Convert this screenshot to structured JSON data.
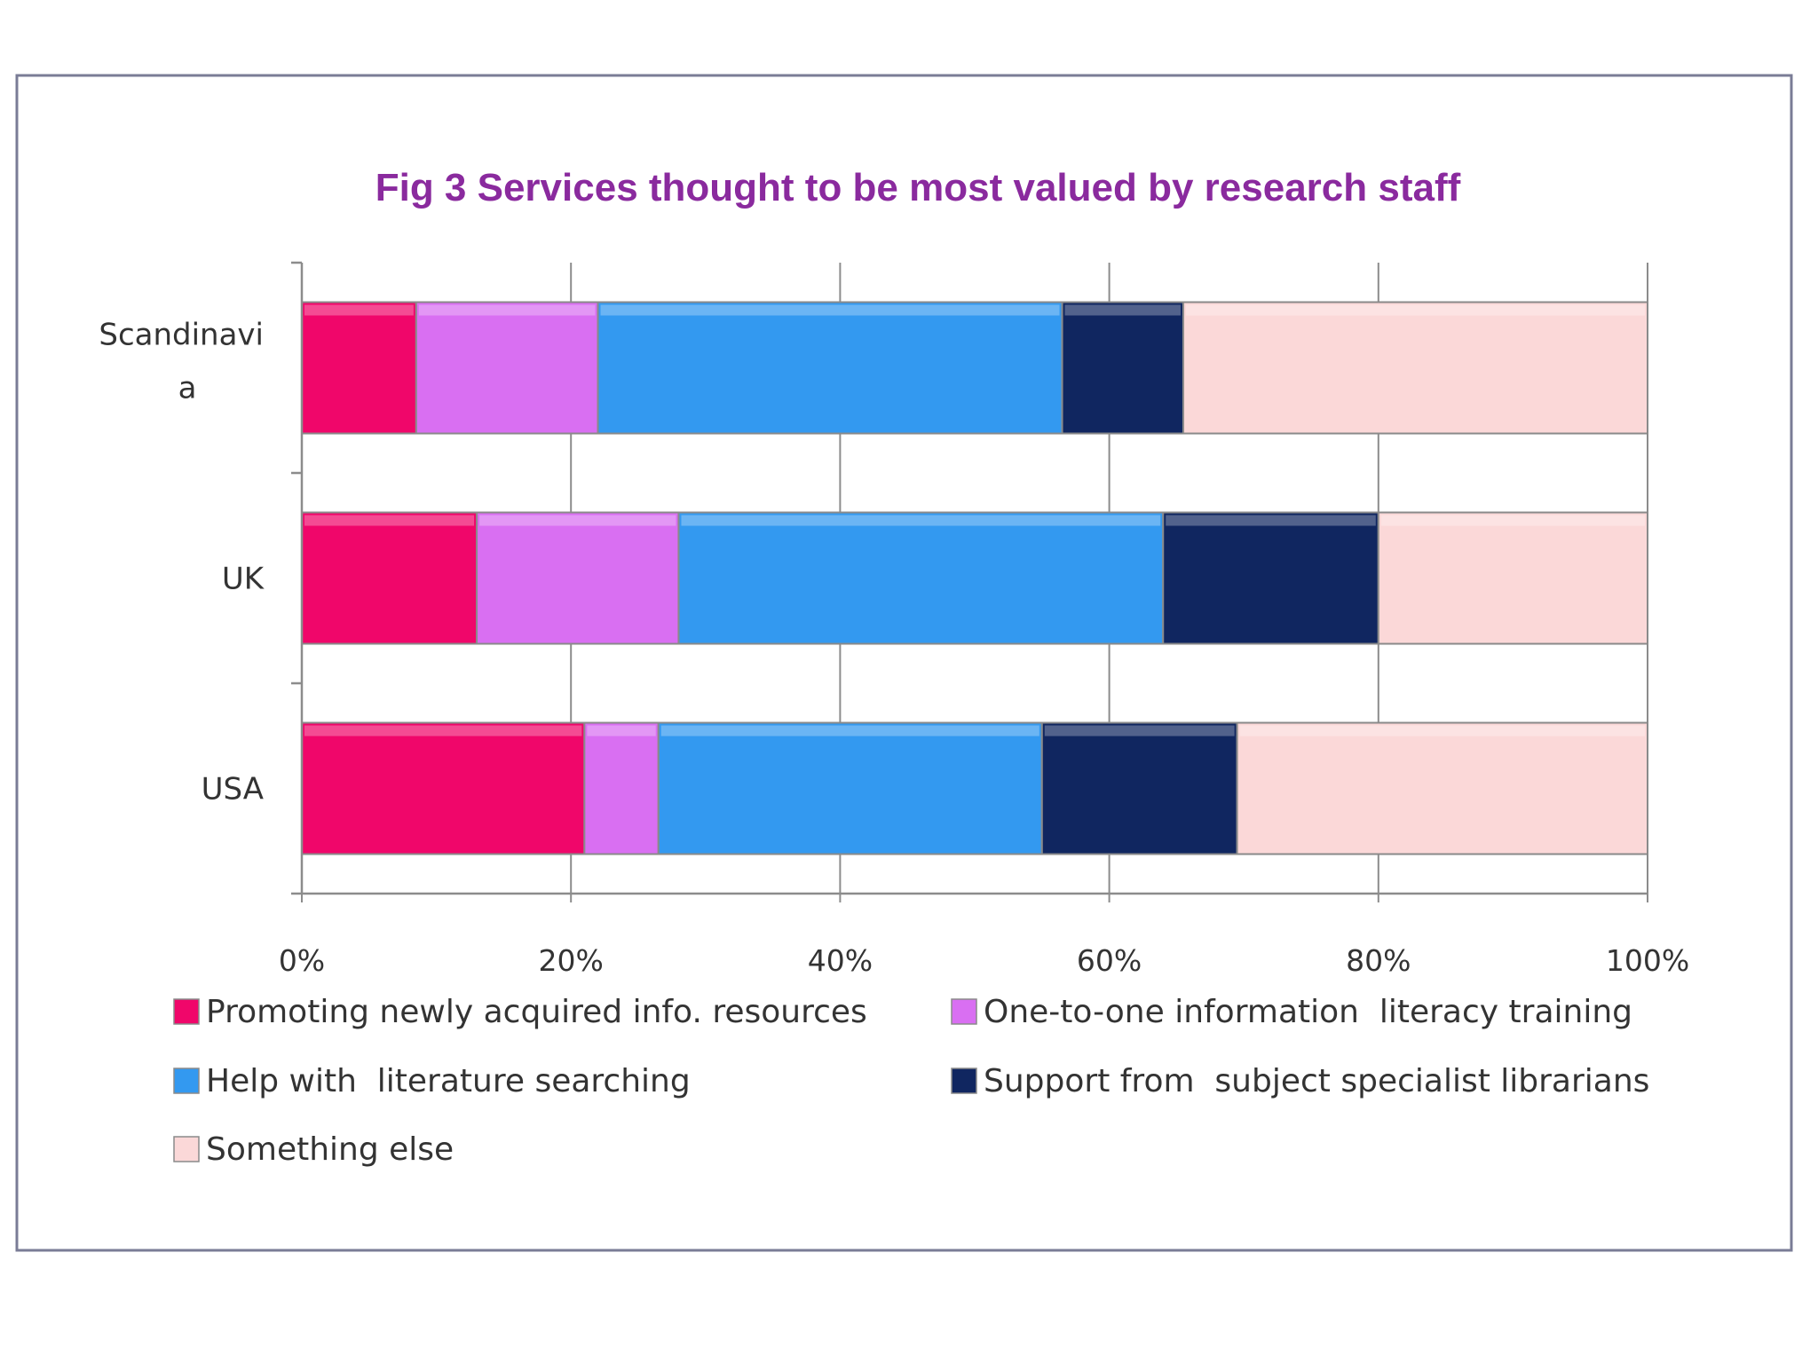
{
  "chart_data": {
    "type": "bar",
    "orientation": "horizontal",
    "stacked": "percent",
    "title": "Fig 3 Services thought to be most valued by research  staff",
    "categories": [
      "Scandinavi a",
      "UK",
      "USA"
    ],
    "category_lines": [
      [
        "Scandinavi",
        "a"
      ],
      [
        "UK"
      ],
      [
        "USA"
      ]
    ],
    "series": [
      {
        "name": "Promoting newly acquired info. resources",
        "color": "#f0066a",
        "values": [
          8.5,
          13,
          21
        ]
      },
      {
        "name": "One-to-one information  literacy training",
        "color": "#d96ff2",
        "values": [
          13.5,
          15,
          5.5
        ]
      },
      {
        "name": "Help with  literature searching",
        "color": "#3399f0",
        "values": [
          34.5,
          36,
          28.5
        ]
      },
      {
        "name": "Support from  subject specialist librarians",
        "color": "#102660",
        "values": [
          9,
          16,
          14.5
        ]
      },
      {
        "name": "Something else",
        "color": "#fbd8d8",
        "values": [
          34.5,
          20,
          30.5
        ]
      }
    ],
    "xlim": [
      0,
      100
    ],
    "xticks": [
      "0%",
      "20%",
      "40%",
      "60%",
      "80%",
      "100%"
    ],
    "grid": true,
    "legend_position": "bottom"
  }
}
